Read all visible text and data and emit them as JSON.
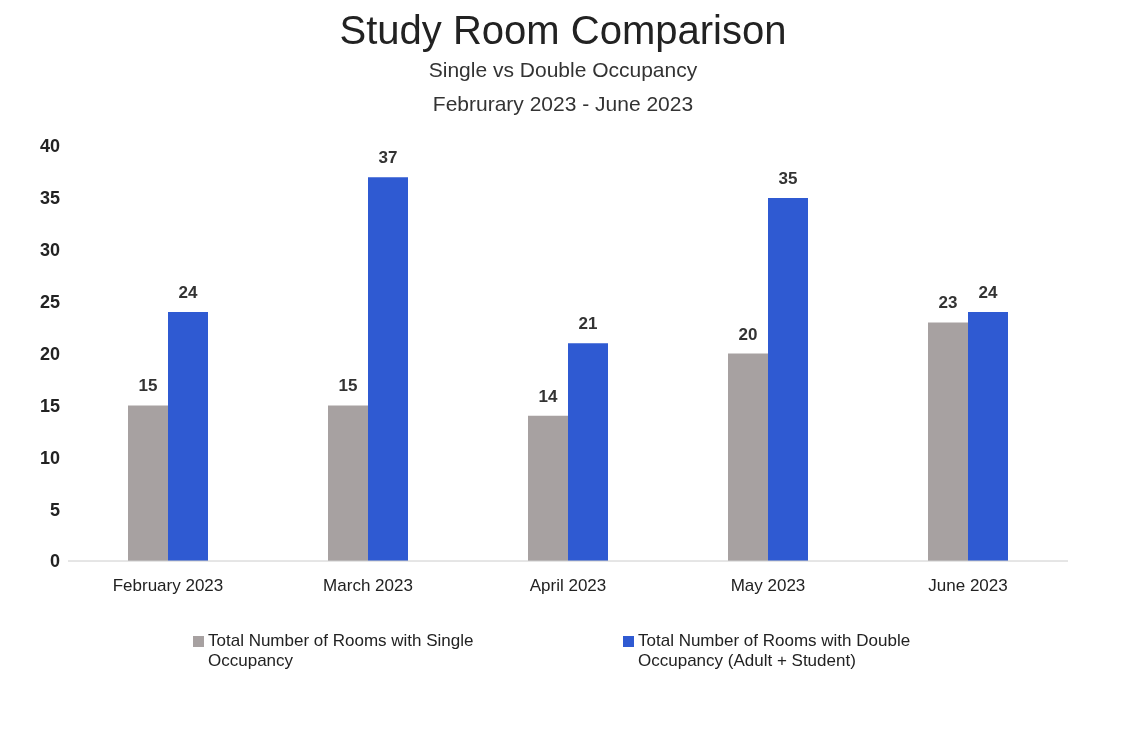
{
  "chart_data": {
    "type": "bar",
    "title": "Study Room Comparison",
    "subtitle": "Single vs Double Occupancy\nFebrurary 2023 - June 2023",
    "categories": [
      "February 2023",
      "March 2023",
      "April 2023",
      "May 2023",
      "June 2023"
    ],
    "series": [
      {
        "name": "Total Number of Rooms with Single Occupancy",
        "color": "#a7a1a1",
        "values": [
          15,
          15,
          14,
          20,
          23
        ]
      },
      {
        "name": "Total Number of Rooms with Double Occupancy (Adult + Student)",
        "color": "#2f5ad2",
        "values": [
          24,
          37,
          21,
          35,
          24
        ]
      }
    ],
    "ylim": [
      0,
      40
    ],
    "yticks": [
      0,
      5,
      10,
      15,
      20,
      25,
      30,
      35,
      40
    ],
    "grid": false,
    "legend": "bottom",
    "data_labels": true
  }
}
